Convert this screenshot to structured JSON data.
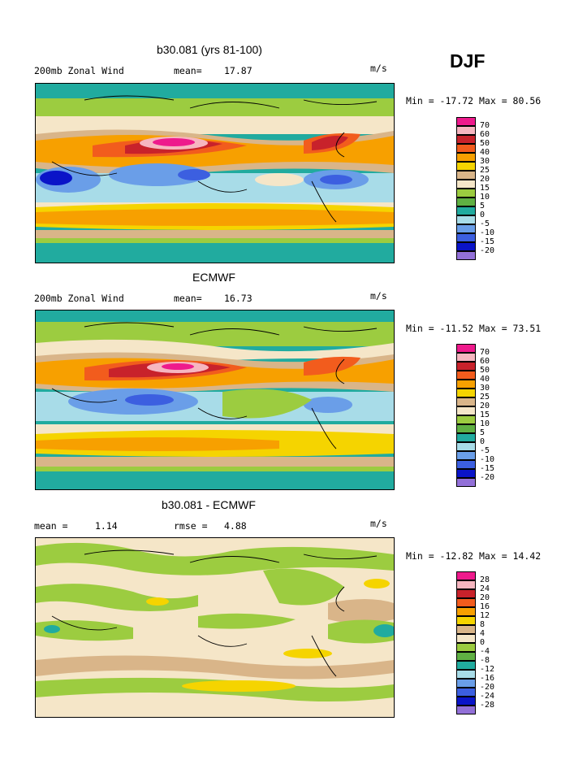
{
  "season": "DJF",
  "panels": [
    {
      "title": "b30.081 (yrs 81-100)",
      "left_label": "200mb Zonal Wind",
      "stat_label": "mean=",
      "stat_value": "17.87",
      "units": "m/s",
      "minmax": "Min = -17.72 Max =  80.56",
      "levels": [
        "70",
        "60",
        "50",
        "40",
        "30",
        "25",
        "20",
        "15",
        "10",
        "5",
        "0",
        "-5",
        "-10",
        "-15",
        "-20"
      ]
    },
    {
      "title": "ECMWF",
      "left_label": "200mb Zonal Wind",
      "stat_label": "mean=",
      "stat_value": "16.73",
      "units": "m/s",
      "minmax": "Min = -11.52 Max =  73.51",
      "levels": [
        "70",
        "60",
        "50",
        "40",
        "30",
        "25",
        "20",
        "15",
        "10",
        "5",
        "0",
        "-5",
        "-10",
        "-15",
        "-20"
      ]
    },
    {
      "title": "b30.081 - ECMWF",
      "left_label": "mean =",
      "left_value": "1.14",
      "stat_label": "rmse =",
      "stat_value": "4.88",
      "units": "m/s",
      "minmax": "Min = -12.82 Max =  14.42",
      "levels": [
        "28",
        "24",
        "20",
        "16",
        "12",
        "8",
        "4",
        "0",
        "-4",
        "-8",
        "-12",
        "-16",
        "-20",
        "-24",
        "-28"
      ]
    }
  ],
  "colorbar_colors": [
    "#ee1a8c",
    "#f6b6c0",
    "#c8222b",
    "#f25c1d",
    "#f7a000",
    "#f5d400",
    "#d9b589",
    "#f5e6c8",
    "#9ccc40",
    "#5fb043",
    "#21ab9f",
    "#a8dce8",
    "#6a9ee8",
    "#3c5fe0",
    "#0a14c8",
    "#9270d8"
  ],
  "chart_data": [
    {
      "type": "heatmap",
      "title": "b30.081 (yrs 81-100)",
      "variable": "200mb Zonal Wind",
      "units": "m/s",
      "mean": 17.87,
      "min": -17.72,
      "max": 80.56,
      "contour_levels": [
        -20,
        -15,
        -10,
        -5,
        0,
        5,
        10,
        15,
        20,
        25,
        30,
        40,
        50,
        60,
        70
      ]
    },
    {
      "type": "heatmap",
      "title": "ECMWF",
      "variable": "200mb Zonal Wind",
      "units": "m/s",
      "mean": 16.73,
      "min": -11.52,
      "max": 73.51,
      "contour_levels": [
        -20,
        -15,
        -10,
        -5,
        0,
        5,
        10,
        15,
        20,
        25,
        30,
        40,
        50,
        60,
        70
      ]
    },
    {
      "type": "heatmap",
      "title": "b30.081 - ECMWF",
      "units": "m/s",
      "mean": 1.14,
      "rmse": 4.88,
      "min": -12.82,
      "max": 14.42,
      "contour_levels": [
        -28,
        -24,
        -20,
        -16,
        -12,
        -8,
        -4,
        0,
        4,
        8,
        12,
        16,
        20,
        24,
        28
      ]
    }
  ]
}
